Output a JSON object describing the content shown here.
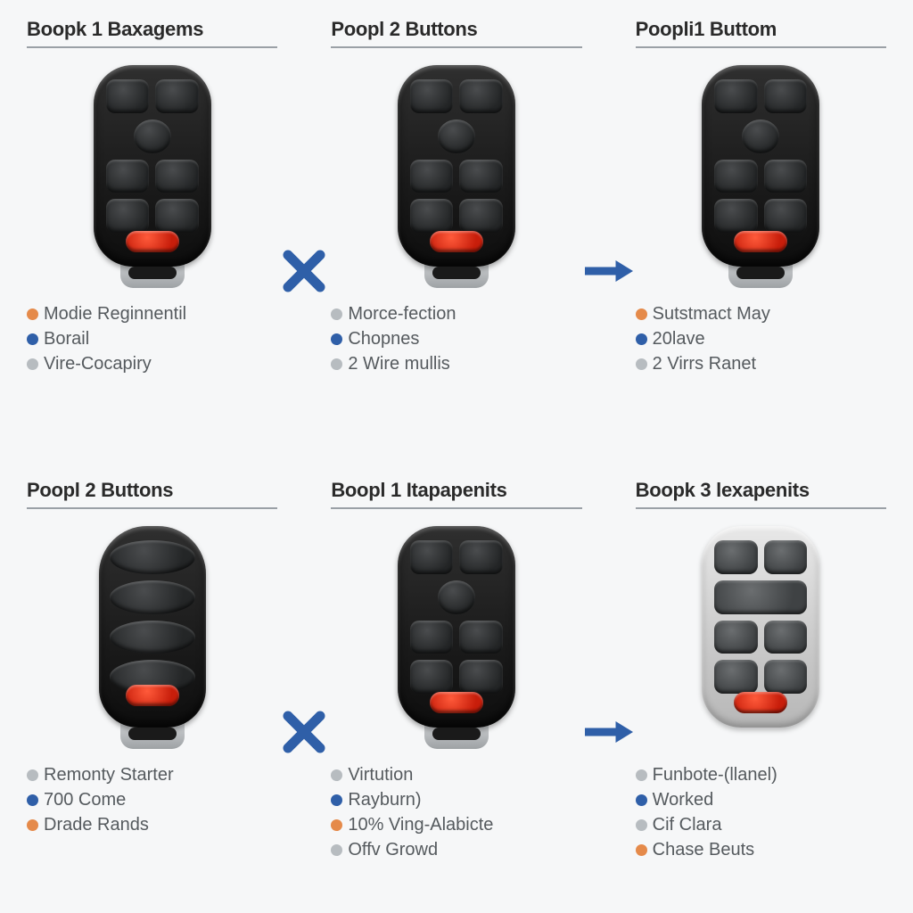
{
  "colors": {
    "orange": "#e58a4a",
    "blue": "#2f5fa8",
    "grey": "#b7bcc0",
    "op": "#2f5fa8"
  },
  "fob_styles": {
    "std": {
      "variant": "std",
      "blade": true
    },
    "smart": {
      "variant": "std",
      "blade": true
    },
    "slim": {
      "variant": "slim",
      "blade": true
    },
    "light": {
      "variant": "light",
      "blade": false
    }
  },
  "rows": [
    {
      "op1": "x",
      "op2": "arrow",
      "cells": [
        {
          "title": "Boopk 1 Baxagems",
          "fob": "std",
          "bullets": [
            {
              "c": "orange",
              "t": "Modie Reginnentil"
            },
            {
              "c": "blue",
              "t": "Borail"
            },
            {
              "c": "grey",
              "t": "Vire-Cocapiry"
            }
          ]
        },
        {
          "title": "Poopl 2 Buttons",
          "fob": "std",
          "bullets": [
            {
              "c": "grey",
              "t": "Morce-fection"
            },
            {
              "c": "blue",
              "t": "Chopnes"
            },
            {
              "c": "grey",
              "t": "2 Wire mullis"
            }
          ]
        },
        {
          "title": "Poopli1 Buttom",
          "fob": "smart",
          "bullets": [
            {
              "c": "orange",
              "t": "Sutstmact May"
            },
            {
              "c": "blue",
              "t": "20lave"
            },
            {
              "c": "grey",
              "t": "2 Virrs Ranet"
            }
          ]
        }
      ]
    },
    {
      "op1": "x",
      "op2": "arrow",
      "cells": [
        {
          "title": "Poopl 2 Buttons",
          "fob": "slim",
          "bullets": [
            {
              "c": "grey",
              "t": "Remonty Starter"
            },
            {
              "c": "blue",
              "t": "700 Come"
            },
            {
              "c": "orange",
              "t": "Drade Rands"
            }
          ]
        },
        {
          "title": "Boopl 1 Itapapenits",
          "fob": "std",
          "bullets": [
            {
              "c": "grey",
              "t": "Virtution"
            },
            {
              "c": "blue",
              "t": "Rayburn)"
            },
            {
              "c": "orange",
              "t": "10% Ving-Alabicte"
            },
            {
              "c": "grey",
              "t": "Offv Growd"
            }
          ]
        },
        {
          "title": "Boopk 3 lexapenits",
          "fob": "light",
          "bullets": [
            {
              "c": "grey",
              "t": "Funbote-(llanel)"
            },
            {
              "c": "blue",
              "t": "Worked"
            },
            {
              "c": "grey",
              "t": "Cif Clara"
            },
            {
              "c": "orange",
              "t": "Chase Beuts"
            }
          ]
        }
      ]
    }
  ]
}
